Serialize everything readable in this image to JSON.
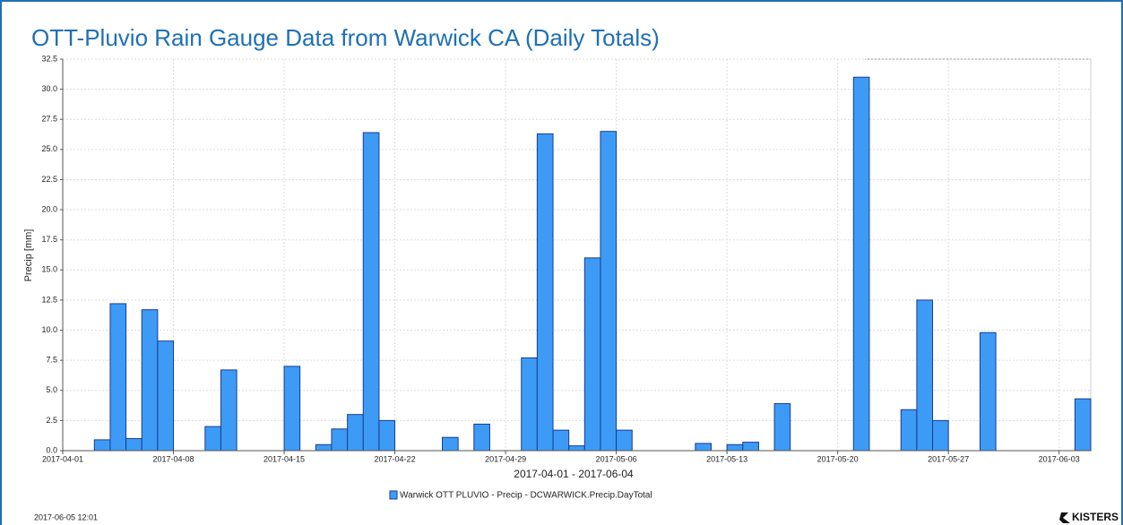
{
  "chart_data": {
    "type": "bar",
    "title": "OTT-Pluvio Rain Gauge Data from Warwick CA (Daily Totals)",
    "x_label": "2017-04-01 - 2017-06-04",
    "y_label": "Precip [mm]",
    "categories": [
      "2017-04-01",
      null,
      null,
      null,
      null,
      null,
      null,
      "2017-04-08",
      null,
      null,
      null,
      null,
      null,
      null,
      "2017-04-15",
      null,
      null,
      null,
      null,
      null,
      null,
      "2017-04-22",
      null,
      null,
      null,
      null,
      null,
      null,
      "2017-04-29",
      null,
      null,
      null,
      null,
      null,
      null,
      "2017-05-06",
      null,
      null,
      null,
      null,
      null,
      null,
      "2017-05-13",
      null,
      null,
      null,
      null,
      null,
      null,
      "2017-05-20",
      null,
      null,
      null,
      null,
      null,
      null,
      "2017-05-27",
      null,
      null,
      null,
      null,
      null,
      null,
      "2017-06-03",
      null
    ],
    "series": [
      {
        "name": "Warwick OTT PLUVIO - Precip - DCWARWICK.Precip.DayTotal",
        "color": "#3d9bf5",
        "values": [
          0,
          0,
          0.9,
          12.2,
          1.0,
          11.7,
          9.1,
          0,
          0,
          2.0,
          6.7,
          0,
          0,
          0,
          7.0,
          0,
          0.5,
          1.8,
          3.0,
          26.4,
          2.5,
          0,
          0,
          0,
          1.1,
          0,
          2.2,
          0,
          0,
          7.7,
          26.3,
          1.7,
          0.4,
          16.0,
          26.5,
          1.7,
          0,
          0,
          0,
          0,
          0.6,
          0,
          0.5,
          0.7,
          0,
          3.9,
          0,
          0,
          0,
          0,
          31.0,
          0,
          0,
          3.4,
          12.5,
          2.5,
          0,
          0,
          9.8,
          0,
          0,
          0,
          0,
          0,
          4.3
        ]
      }
    ],
    "ylim": [
      0,
      32.5
    ],
    "yticks": [
      {
        "value": 0,
        "label": "0.0"
      },
      2.5,
      {
        "value": 5,
        "label": "5.0"
      },
      7.5,
      {
        "value": 10,
        "label": "10.0"
      },
      12.5,
      {
        "value": 15,
        "label": "15.0"
      },
      17.5,
      {
        "value": 20,
        "label": "20.0"
      },
      22.5,
      {
        "value": 25,
        "label": "25.0"
      },
      27.5,
      {
        "value": 30,
        "label": "30.0"
      },
      32.5
    ],
    "grid": true,
    "timestamp": "2017-06-05  12:01",
    "brand": "KISTERS"
  }
}
